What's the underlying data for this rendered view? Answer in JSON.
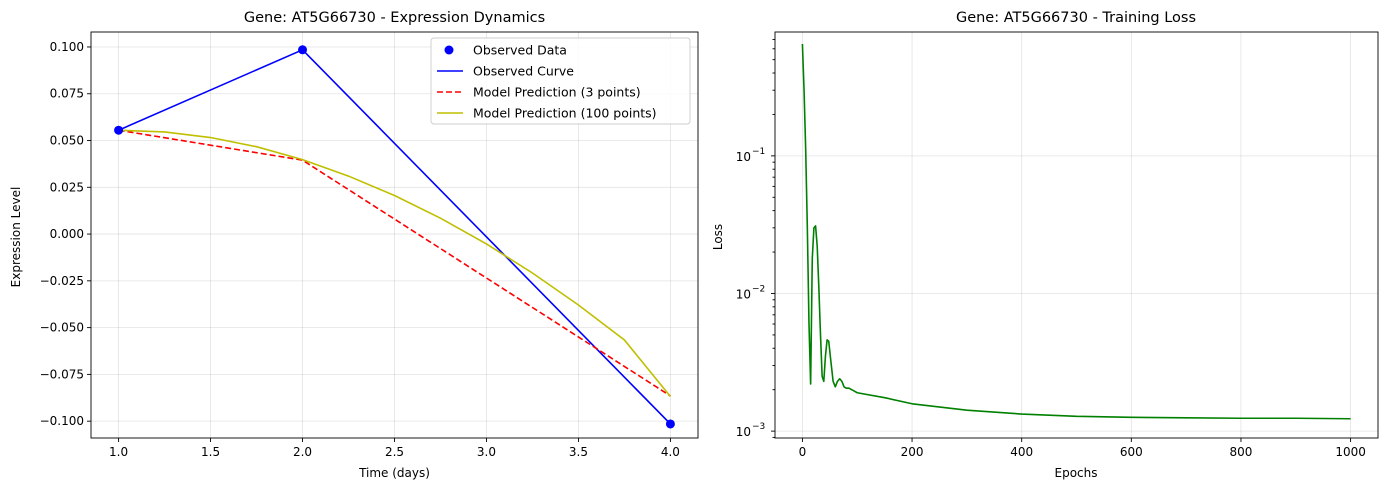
{
  "chart_data": [
    {
      "type": "line",
      "title": "Gene: AT5G66730 - Expression Dynamics",
      "xlabel": "Time (days)",
      "ylabel": "Expression Level",
      "xlim": [
        0.85,
        4.15
      ],
      "ylim": [
        -0.109,
        0.108
      ],
      "xticks": [
        1.0,
        1.5,
        2.0,
        2.5,
        3.0,
        3.5,
        4.0
      ],
      "xtick_labels": [
        "1.0",
        "1.5",
        "2.0",
        "2.5",
        "3.0",
        "3.5",
        "4.0"
      ],
      "yticks": [
        -0.1,
        -0.075,
        -0.05,
        -0.025,
        0.0,
        0.025,
        0.05,
        0.075,
        0.1
      ],
      "ytick_labels": [
        "−0.100",
        "−0.075",
        "−0.050",
        "−0.025",
        "0.000",
        "0.025",
        "0.050",
        "0.075",
        "0.100"
      ],
      "grid": true,
      "legend_position": "top-right",
      "series": [
        {
          "name": "Observed Data",
          "kind": "scatter",
          "color": "#0000ff",
          "x": [
            1,
            2,
            4
          ],
          "y": [
            0.0555,
            0.0985,
            -0.1015
          ]
        },
        {
          "name": "Observed Curve",
          "kind": "line",
          "style": "solid",
          "color": "#0000ff",
          "x": [
            1,
            2,
            4
          ],
          "y": [
            0.0555,
            0.0985,
            -0.1015
          ]
        },
        {
          "name": "Model Prediction (3 points)",
          "kind": "line",
          "style": "dashed",
          "color": "#ff0000",
          "x": [
            1,
            2,
            4
          ],
          "y": [
            0.0555,
            0.0395,
            -0.0865
          ]
        },
        {
          "name": "Model Prediction (100 points)",
          "kind": "line",
          "style": "solid",
          "color": "#bfbf00",
          "x": [
            1.0,
            1.25,
            1.5,
            1.75,
            2.0,
            2.25,
            2.5,
            2.75,
            3.0,
            3.25,
            3.5,
            3.75,
            4.0
          ],
          "y": [
            0.0555,
            0.0546,
            0.0516,
            0.0467,
            0.0398,
            0.031,
            0.0206,
            0.0085,
            -0.0053,
            -0.0208,
            -0.0379,
            -0.0566,
            -0.0868
          ]
        }
      ]
    },
    {
      "type": "line",
      "title": "Gene: AT5G66730 - Training Loss",
      "xlabel": "Epochs",
      "ylabel": "Loss",
      "xlim": [
        -50,
        1050
      ],
      "ylim_log10": [
        -3.05,
        -0.1
      ],
      "yscale": "log",
      "xticks": [
        0,
        200,
        400,
        600,
        800,
        1000
      ],
      "xtick_labels": [
        "0",
        "200",
        "400",
        "600",
        "800",
        "1000"
      ],
      "yticks_log10": [
        -3,
        -2,
        -1
      ],
      "ytick_labels": [
        "10",
        "10",
        "10"
      ],
      "ytick_exponents": [
        "−3",
        "−2",
        "−1"
      ],
      "grid": true,
      "series": [
        {
          "name": "",
          "kind": "line",
          "style": "solid",
          "color": "#008000",
          "x": [
            0,
            3,
            6,
            9,
            12,
            15,
            18,
            21,
            24,
            27,
            30,
            33,
            36,
            39,
            42,
            45,
            48,
            52,
            56,
            60,
            64,
            68,
            72,
            76,
            80,
            85,
            90,
            95,
            100,
            150,
            200,
            300,
            400,
            500,
            600,
            700,
            800,
            900,
            1000
          ],
          "y": [
            0.65,
            0.3,
            0.11,
            0.03,
            0.006,
            0.0022,
            0.018,
            0.03,
            0.031,
            0.022,
            0.011,
            0.005,
            0.0025,
            0.0023,
            0.0035,
            0.0046,
            0.0045,
            0.0032,
            0.0023,
            0.0021,
            0.0023,
            0.0024,
            0.0023,
            0.0021,
            0.00205,
            0.00205,
            0.002,
            0.00195,
            0.0019,
            0.00175,
            0.00158,
            0.00142,
            0.00133,
            0.00128,
            0.00126,
            0.00125,
            0.00124,
            0.00124,
            0.00123
          ]
        }
      ]
    }
  ]
}
